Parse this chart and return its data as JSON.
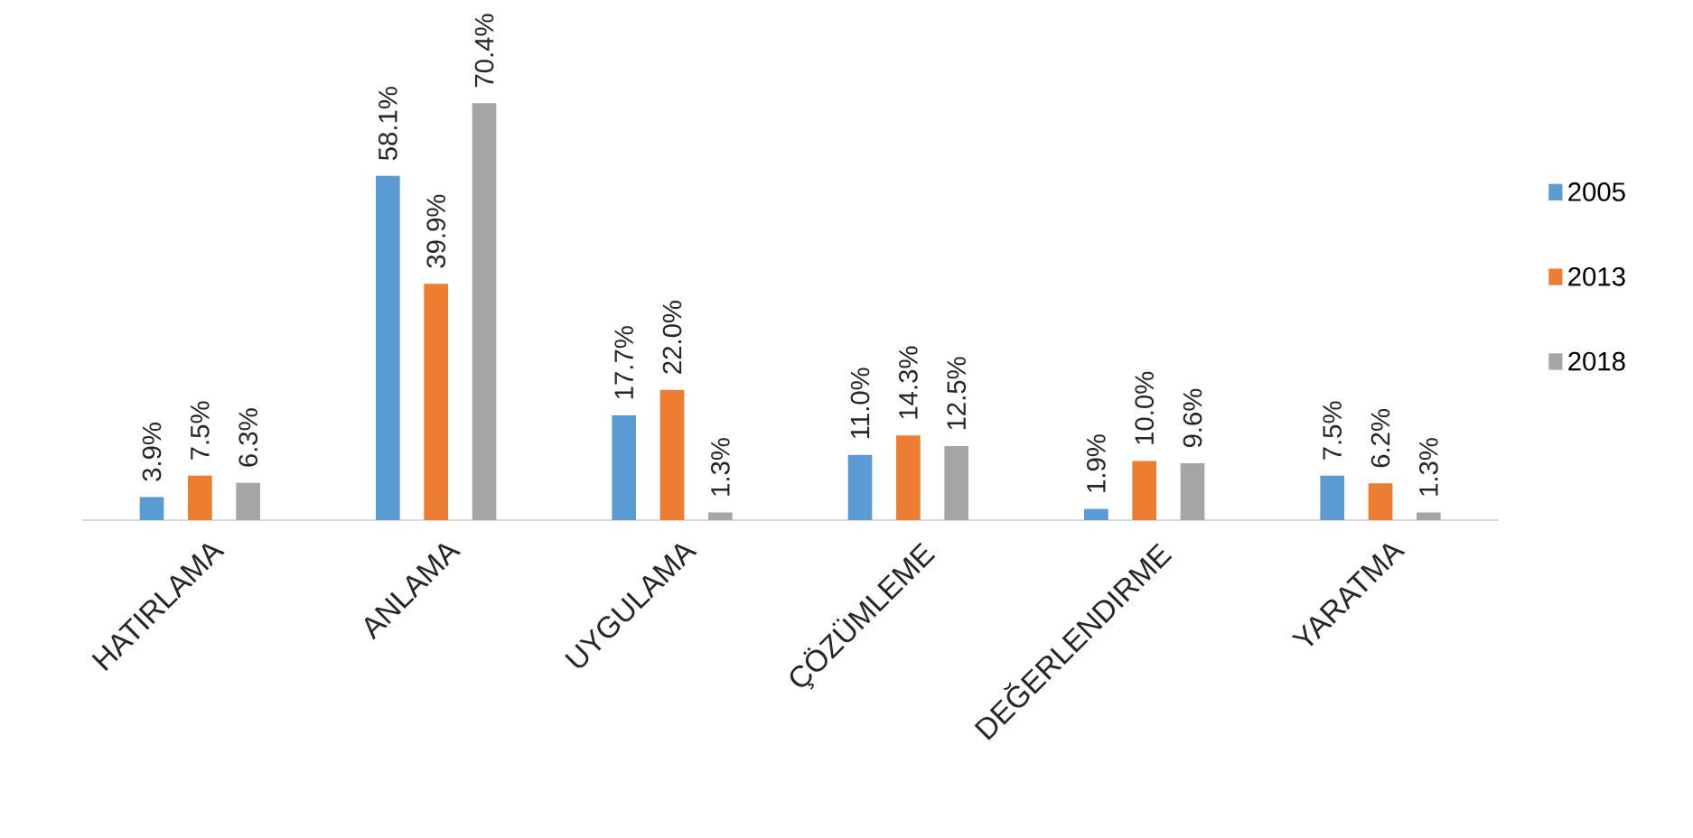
{
  "chart_data": {
    "type": "bar",
    "categories": [
      "HATIRLAMA",
      "ANLAMA",
      "UYGULAMA",
      "ÇÖZÜMLEME",
      "DEĞERLENDIRME",
      "YARATMA"
    ],
    "series": [
      {
        "name": "2005",
        "color": "#5b9bd5",
        "values": [
          3.9,
          58.1,
          17.7,
          11.0,
          1.9,
          7.5
        ],
        "value_labels": [
          "3.9%",
          "58.1%",
          "17.7%",
          "11.0%",
          "1.9%",
          "7.5%"
        ]
      },
      {
        "name": "2013",
        "color": "#ed7d31",
        "values": [
          7.5,
          39.9,
          22.0,
          14.3,
          10.0,
          6.2
        ],
        "value_labels": [
          "7.5%",
          "39.9%",
          "22.0%",
          "14.3%",
          "10.0%",
          "6.2%"
        ]
      },
      {
        "name": "2018",
        "color": "#a5a5a5",
        "values": [
          6.3,
          70.4,
          1.3,
          12.5,
          9.6,
          1.3
        ],
        "value_labels": [
          "6.3%",
          "70.4%",
          "1.3%",
          "12.5%",
          "9.6%",
          "1.3%"
        ]
      }
    ],
    "legend": "right"
  }
}
